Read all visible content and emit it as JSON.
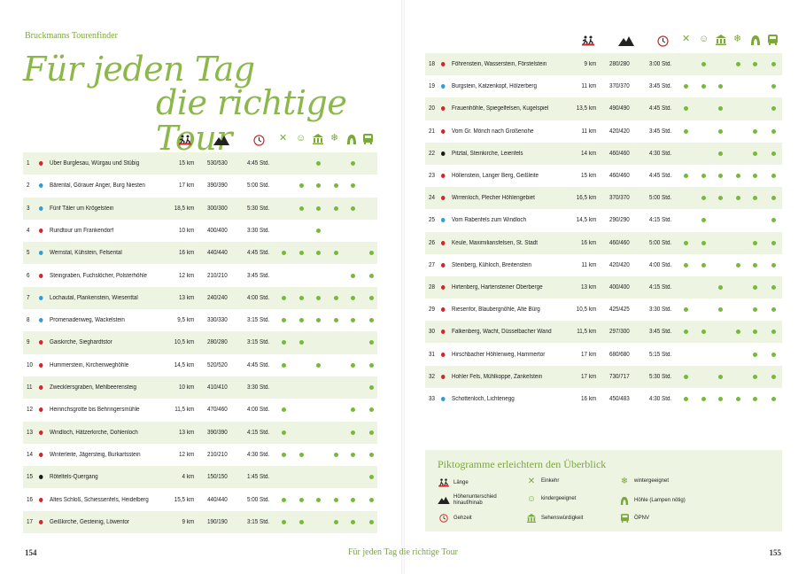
{
  "running_head": "Bruckmanns Tourenfinder",
  "title_line1": "Für jeden Tag",
  "title_line2": "die richtige Tour",
  "colors": {
    "accent": "#8cb84a",
    "dot_green": "#78b83a",
    "red": "#d3262b",
    "blue": "#2b9fd8",
    "black": "#1a1a1a",
    "table_bg": "#eef4e2"
  },
  "icon_columns": [
    "hiker-icon",
    "mountain-icon",
    "clock-icon",
    "cutlery-icon",
    "smiley-icon",
    "museum-icon",
    "snowflake-icon",
    "cave-icon",
    "bus-icon"
  ],
  "tours_left": [
    {
      "num": "1",
      "color": "red",
      "name": "Über Burglesau, Würgau und Stübig",
      "km": "15 km",
      "hm": "530/530",
      "time": "4:45 Std.",
      "icons": [
        0,
        0,
        1,
        0,
        1,
        0
      ]
    },
    {
      "num": "2",
      "color": "blue",
      "name": "Bärental, Görauer Anger, Burg Niesten",
      "km": "17 km",
      "hm": "390/390",
      "time": "5:00 Std.",
      "icons": [
        0,
        1,
        1,
        1,
        1,
        0
      ]
    },
    {
      "num": "3",
      "color": "blue",
      "name": "Fünf Täler um Krögelstein",
      "km": "18,5 km",
      "hm": "300/300",
      "time": "5:30 Std.",
      "icons": [
        0,
        1,
        1,
        1,
        1,
        0
      ]
    },
    {
      "num": "4",
      "color": "red",
      "name": "Rundtour um Frankendorf",
      "km": "10 km",
      "hm": "400/400",
      "time": "3:30 Std.",
      "icons": [
        0,
        0,
        1,
        0,
        0,
        0
      ]
    },
    {
      "num": "5",
      "color": "blue",
      "name": "Wernstal, Kühstein, Felsental",
      "km": "16 km",
      "hm": "440/440",
      "time": "4:45 Std.",
      "icons": [
        1,
        1,
        1,
        1,
        0,
        1
      ]
    },
    {
      "num": "6",
      "color": "red",
      "name": "Steingraben, Fuchslöcher, Polsterhöhle",
      "km": "12 km",
      "hm": "210/210",
      "time": "3:45 Std.",
      "icons": [
        0,
        0,
        0,
        0,
        1,
        1
      ]
    },
    {
      "num": "7",
      "color": "blue",
      "name": "Lochautal, Plankenstein, Wiesenttal",
      "km": "13 km",
      "hm": "240/240",
      "time": "4:00 Std.",
      "icons": [
        1,
        1,
        1,
        1,
        1,
        1
      ]
    },
    {
      "num": "8",
      "color": "blue",
      "name": "Promenadenweg, Wackelstein",
      "km": "9,5 km",
      "hm": "330/330",
      "time": "3:15 Std.",
      "icons": [
        1,
        1,
        1,
        1,
        1,
        1
      ]
    },
    {
      "num": "9",
      "color": "red",
      "name": "Gaiskirche, Sieghardtstor",
      "km": "10,5 km",
      "hm": "280/280",
      "time": "3:15 Std.",
      "icons": [
        1,
        1,
        0,
        0,
        0,
        1
      ]
    },
    {
      "num": "10",
      "color": "red",
      "name": "Hummerstein, Kirchenweghöhle",
      "km": "14,5 km",
      "hm": "520/520",
      "time": "4:45 Std.",
      "icons": [
        1,
        0,
        1,
        0,
        1,
        1
      ]
    },
    {
      "num": "11",
      "color": "red",
      "name": "Zwecklersgraben, Mehlbeerensteig",
      "km": "10 km",
      "hm": "410/410",
      "time": "3:30 Std.",
      "icons": [
        0,
        0,
        0,
        0,
        0,
        1
      ]
    },
    {
      "num": "12",
      "color": "red",
      "name": "Heinrichsgrotte bis Behringersmühle",
      "km": "11,5 km",
      "hm": "470/460",
      "time": "4:00 Std.",
      "icons": [
        1,
        0,
        0,
        0,
        1,
        1
      ]
    },
    {
      "num": "13",
      "color": "red",
      "name": "Windloch, Hätzerkirche, Dohlenloch",
      "km": "13 km",
      "hm": "390/390",
      "time": "4:15 Std.",
      "icons": [
        1,
        0,
        0,
        0,
        1,
        1
      ]
    },
    {
      "num": "14",
      "color": "red",
      "name": "Winterleite, Jägersteig, Burkartsstein",
      "km": "12 km",
      "hm": "210/210",
      "time": "4:30 Std.",
      "icons": [
        1,
        1,
        0,
        1,
        1,
        1
      ]
    },
    {
      "num": "15",
      "color": "black",
      "name": "Röteltels-Quergang",
      "km": "4 km",
      "hm": "150/150",
      "time": "1:45 Std.",
      "icons": [
        0,
        0,
        0,
        0,
        0,
        1
      ]
    },
    {
      "num": "16",
      "color": "red",
      "name": "Altes Schloß, Schiessenfels, Heidelberg",
      "km": "15,5 km",
      "hm": "440/440",
      "time": "5:00 Std.",
      "icons": [
        1,
        1,
        1,
        1,
        1,
        1
      ]
    },
    {
      "num": "17",
      "color": "red",
      "name": "Geißkirche, Gesteinig, Löwentor",
      "km": "9 km",
      "hm": "190/190",
      "time": "3:15 Std.",
      "icons": [
        1,
        1,
        0,
        1,
        1,
        1
      ]
    }
  ],
  "tours_right": [
    {
      "num": "18",
      "color": "red",
      "name": "Föhrenstein, Wasserstein, Förstelstein",
      "km": "9 km",
      "hm": "280/280",
      "time": "3:00 Std.",
      "icons": [
        0,
        1,
        0,
        1,
        1,
        1
      ]
    },
    {
      "num": "19",
      "color": "blue",
      "name": "Burgstein, Katzenkopf, Hölzerberg",
      "km": "11 km",
      "hm": "370/370",
      "time": "3:45 Std.",
      "icons": [
        1,
        1,
        1,
        0,
        0,
        1
      ]
    },
    {
      "num": "20",
      "color": "red",
      "name": "Frauenhöhle, Spiegelfelsen, Kugelspiel",
      "km": "13,5 km",
      "hm": "490/490",
      "time": "4:45 Std.",
      "icons": [
        1,
        0,
        1,
        0,
        0,
        1
      ]
    },
    {
      "num": "21",
      "color": "red",
      "name": "Vom Gr. Mönch nach Großenohe",
      "km": "11 km",
      "hm": "420/420",
      "time": "3:45 Std.",
      "icons": [
        1,
        0,
        1,
        0,
        1,
        1
      ]
    },
    {
      "num": "22",
      "color": "black",
      "name": "Pitztal, Steinkirche, Leienfels",
      "km": "14 km",
      "hm": "460/460",
      "time": "4:30 Std.",
      "icons": [
        0,
        0,
        1,
        0,
        1,
        1
      ]
    },
    {
      "num": "23",
      "color": "red",
      "name": "Höllenstein, Langer Berg, Geißleite",
      "km": "15 km",
      "hm": "460/460",
      "time": "4:45 Std.",
      "icons": [
        1,
        1,
        1,
        1,
        1,
        1
      ]
    },
    {
      "num": "24",
      "color": "red",
      "name": "Wirrenloch, Plecher Höhlengebiet",
      "km": "16,5 km",
      "hm": "370/370",
      "time": "5:00 Std.",
      "icons": [
        0,
        1,
        1,
        1,
        1,
        1
      ]
    },
    {
      "num": "25",
      "color": "blue",
      "name": "Vom Rabenfels zum Windloch",
      "km": "14,5 km",
      "hm": "290/290",
      "time": "4:15 Std.",
      "icons": [
        0,
        1,
        0,
        0,
        0,
        1
      ]
    },
    {
      "num": "26",
      "color": "red",
      "name": "Keule, Maximiliansfelsen, St. Stadt",
      "km": "16 km",
      "hm": "460/460",
      "time": "5:00 Std.",
      "icons": [
        1,
        1,
        0,
        0,
        1,
        1
      ]
    },
    {
      "num": "27",
      "color": "red",
      "name": "Steinberg, Kühloch, Breitenstein",
      "km": "11 km",
      "hm": "420/420",
      "time": "4:00 Std.",
      "icons": [
        1,
        1,
        0,
        1,
        1,
        1
      ]
    },
    {
      "num": "28",
      "color": "red",
      "name": "Hirtenberg, Hartensteiner Oberberge",
      "km": "13 km",
      "hm": "400/400",
      "time": "4:15 Std.",
      "icons": [
        0,
        0,
        1,
        0,
        1,
        1
      ]
    },
    {
      "num": "29",
      "color": "red",
      "name": "Riesenfor, Blaubergnöhle, Alte Bürg",
      "km": "10,5 km",
      "hm": "425/425",
      "time": "3:30 Std.",
      "icons": [
        1,
        0,
        1,
        0,
        1,
        1
      ]
    },
    {
      "num": "30",
      "color": "red",
      "name": "Falkenberg, Wacht, Düsselbacher Wand",
      "km": "11,5 km",
      "hm": "297/300",
      "time": "3:45 Std.",
      "icons": [
        1,
        1,
        0,
        1,
        1,
        1
      ]
    },
    {
      "num": "31",
      "color": "red",
      "name": "Hirschbacher Höhlenweg, Hammertor",
      "km": "17 km",
      "hm": "680/680",
      "time": "5:15 Std.",
      "icons": [
        0,
        0,
        0,
        0,
        1,
        1
      ]
    },
    {
      "num": "32",
      "color": "red",
      "name": "Hohler Fels, Mühlkoppe, Zankelstein",
      "km": "17 km",
      "hm": "730/717",
      "time": "5:30 Std.",
      "icons": [
        1,
        0,
        1,
        0,
        1,
        1
      ]
    },
    {
      "num": "33",
      "color": "blue",
      "name": "Schottenloch, Lichtenegg",
      "km": "16 km",
      "hm": "450/483",
      "time": "4:30 Std.",
      "icons": [
        1,
        1,
        1,
        1,
        1,
        1
      ]
    }
  ],
  "legend": {
    "title": "Piktogramme erleichtern den Überblick",
    "items": [
      {
        "icon": "hiker-icon",
        "label": "Länge"
      },
      {
        "icon": "mountain-icon",
        "label": "Höhenunterschied hinauf/hinab"
      },
      {
        "icon": "clock-icon",
        "label": "Gehzeit"
      },
      {
        "icon": "cutlery-icon",
        "label": "Einkehr"
      },
      {
        "icon": "smiley-icon",
        "label": "kindergeeignet"
      },
      {
        "icon": "museum-icon",
        "label": "Sehenswürdigkeit"
      },
      {
        "icon": "snowflake-icon",
        "label": "wintergeeignet"
      },
      {
        "icon": "cave-icon",
        "label": "Höhle (Lampen nötig)"
      },
      {
        "icon": "bus-icon",
        "label": "ÖPNV"
      }
    ]
  },
  "folio_left": "154",
  "folio_right": "155",
  "footer_title": "Für jeden Tag die richtige Tour"
}
